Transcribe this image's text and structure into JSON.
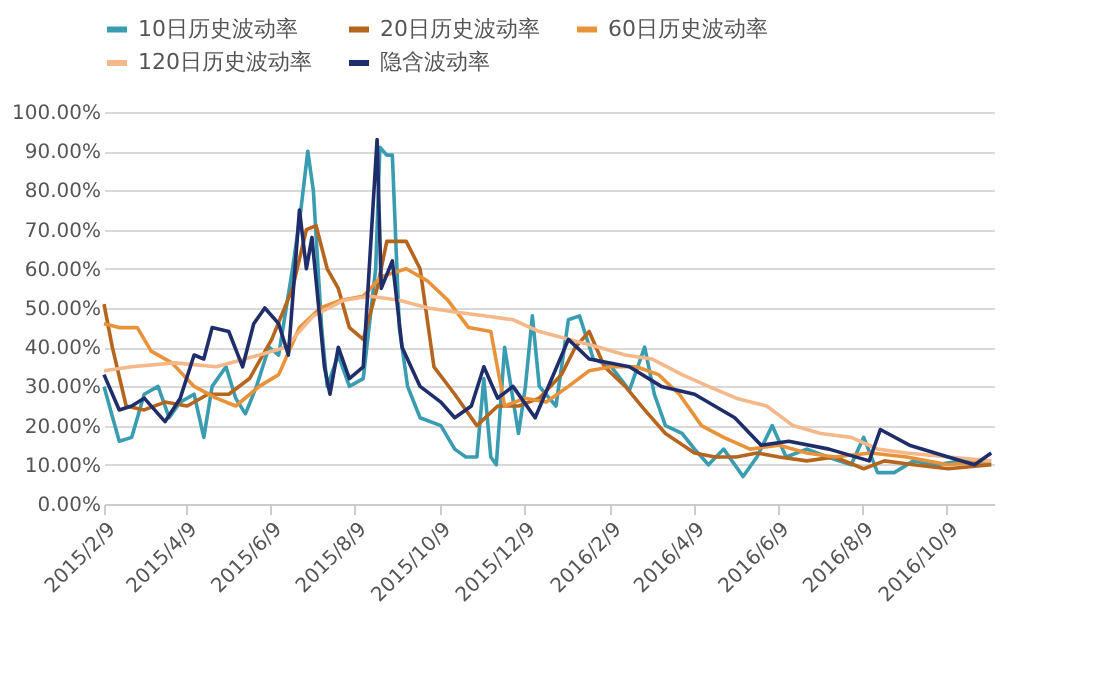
{
  "chart_data": {
    "type": "line",
    "legend": "top",
    "grid": "y",
    "line_style": "solid",
    "marker": "none",
    "xlim": [
      "2015-02-09",
      "2016-11-12"
    ],
    "xticks": [
      {
        "value": "2015-02-09",
        "label": "2015/2/9"
      },
      {
        "value": "2015-04-09",
        "label": "2015/4/9"
      },
      {
        "value": "2015-06-09",
        "label": "2015/6/9"
      },
      {
        "value": "2015-08-09",
        "label": "2015/8/9"
      },
      {
        "value": "2015-10-09",
        "label": "2015/10/9"
      },
      {
        "value": "2015-12-09",
        "label": "2015/12/9"
      },
      {
        "value": "2016-02-09",
        "label": "2016/2/9"
      },
      {
        "value": "2016-04-09",
        "label": "2016/4/9"
      },
      {
        "value": "2016-06-09",
        "label": "2016/6/9"
      },
      {
        "value": "2016-08-09",
        "label": "2016/8/9"
      },
      {
        "value": "2016-10-09",
        "label": "2016/10/9"
      }
    ],
    "ylim": [
      0,
      100
    ],
    "yticks": [
      {
        "value": 0,
        "label": "0.00%"
      },
      {
        "value": 10,
        "label": "10.00%"
      },
      {
        "value": 20,
        "label": "20.00%"
      },
      {
        "value": 30,
        "label": "30.00%"
      },
      {
        "value": 40,
        "label": "40.00%"
      },
      {
        "value": 50,
        "label": "50.00%"
      },
      {
        "value": 60,
        "label": "60.00%"
      },
      {
        "value": 70,
        "label": "70.00%"
      },
      {
        "value": 80,
        "label": "80.00%"
      },
      {
        "value": 90,
        "label": "90.00%"
      },
      {
        "value": 100,
        "label": "100.00%"
      }
    ],
    "series": [
      {
        "name": "10日历史波动率",
        "color": "#3a9cb0",
        "x": [
          "2015-02-09",
          "2015-02-20",
          "2015-03-01",
          "2015-03-10",
          "2015-03-20",
          "2015-03-28",
          "2015-04-05",
          "2015-04-15",
          "2015-04-22",
          "2015-04-28",
          "2015-05-08",
          "2015-05-15",
          "2015-05-22",
          "2015-05-30",
          "2015-06-08",
          "2015-06-15",
          "2015-06-25",
          "2015-07-01",
          "2015-07-06",
          "2015-07-10",
          "2015-07-16",
          "2015-07-20",
          "2015-07-28",
          "2015-08-05",
          "2015-08-15",
          "2015-08-24",
          "2015-08-27",
          "2015-09-01",
          "2015-09-05",
          "2015-09-10",
          "2015-09-16",
          "2015-09-25",
          "2015-10-10",
          "2015-10-20",
          "2015-10-28",
          "2015-11-05",
          "2015-11-10",
          "2015-11-15",
          "2015-11-19",
          "2015-11-25",
          "2015-12-05",
          "2015-12-10",
          "2015-12-15",
          "2015-12-20",
          "2016-01-01",
          "2016-01-10",
          "2016-01-18",
          "2016-01-28",
          "2016-02-10",
          "2016-02-23",
          "2016-03-05",
          "2016-03-12",
          "2016-03-20",
          "2016-04-01",
          "2016-04-10",
          "2016-04-20",
          "2016-05-01",
          "2016-05-15",
          "2016-05-25",
          "2016-06-05",
          "2016-06-15",
          "2016-06-30",
          "2016-07-15",
          "2016-08-01",
          "2016-08-10",
          "2016-08-20",
          "2016-09-01",
          "2016-09-15",
          "2016-10-01",
          "2016-10-20",
          "2016-11-10"
        ],
        "values": [
          30,
          16,
          17,
          28,
          30,
          22,
          26,
          28,
          17,
          30,
          35,
          27,
          23,
          30,
          40,
          38,
          60,
          75,
          90,
          80,
          45,
          30,
          38,
          30,
          32,
          60,
          91,
          89,
          89,
          45,
          30,
          22,
          20,
          14,
          12,
          12,
          32,
          12,
          10,
          40,
          18,
          30,
          48,
          30,
          25,
          47,
          48,
          37,
          35,
          29,
          40,
          28,
          20,
          18,
          14,
          10,
          14,
          7,
          12,
          20,
          12,
          14,
          12,
          10,
          17,
          8,
          8,
          11,
          10,
          11,
          10
        ]
      },
      {
        "name": "20日历史波动率",
        "color": "#b5651d",
        "x": [
          "2015-02-09",
          "2015-02-15",
          "2015-02-25",
          "2015-03-10",
          "2015-03-25",
          "2015-04-10",
          "2015-04-25",
          "2015-05-10",
          "2015-05-25",
          "2015-06-10",
          "2015-06-25",
          "2015-07-05",
          "2015-07-12",
          "2015-07-20",
          "2015-07-28",
          "2015-08-05",
          "2015-08-15",
          "2015-08-25",
          "2015-09-01",
          "2015-09-15",
          "2015-09-25",
          "2015-10-05",
          "2015-10-20",
          "2015-11-05",
          "2015-11-20",
          "2015-12-05",
          "2015-12-20",
          "2016-01-05",
          "2016-01-15",
          "2016-01-25",
          "2016-02-05",
          "2016-02-20",
          "2016-03-05",
          "2016-03-20",
          "2016-04-10",
          "2016-04-25",
          "2016-05-10",
          "2016-05-25",
          "2016-06-10",
          "2016-06-30",
          "2016-07-20",
          "2016-08-10",
          "2016-08-25",
          "2016-09-15",
          "2016-10-10",
          "2016-11-10"
        ],
        "values": [
          51,
          40,
          25,
          24,
          26,
          25,
          28,
          28,
          32,
          42,
          55,
          70,
          71,
          60,
          55,
          45,
          42,
          55,
          67,
          67,
          60,
          35,
          28,
          20,
          25,
          25,
          27,
          33,
          40,
          44,
          35,
          30,
          24,
          18,
          13,
          12,
          12,
          13,
          12,
          11,
          12,
          9,
          11,
          10,
          9,
          10
        ]
      },
      {
        "name": "60日历史波动率",
        "color": "#e8923a",
        "x": [
          "2015-02-09",
          "2015-02-20",
          "2015-03-05",
          "2015-03-15",
          "2015-03-30",
          "2015-04-15",
          "2015-05-01",
          "2015-05-15",
          "2015-06-01",
          "2015-06-15",
          "2015-06-30",
          "2015-07-15",
          "2015-07-30",
          "2015-08-15",
          "2015-08-28",
          "2015-09-15",
          "2015-09-30",
          "2015-10-15",
          "2015-10-30",
          "2015-11-15",
          "2015-11-25",
          "2015-12-10",
          "2015-12-25",
          "2016-01-10",
          "2016-01-25",
          "2016-02-10",
          "2016-02-28",
          "2016-03-15",
          "2016-03-30",
          "2016-04-15",
          "2016-05-01",
          "2016-05-20",
          "2016-06-10",
          "2016-06-30",
          "2016-07-20",
          "2016-08-15",
          "2016-09-10",
          "2016-10-10",
          "2016-11-10"
        ],
        "values": [
          46,
          45,
          45,
          39,
          36,
          30,
          27,
          25,
          30,
          33,
          45,
          50,
          52,
          53,
          58,
          60,
          57,
          52,
          45,
          44,
          25,
          27,
          26,
          30,
          34,
          35,
          35,
          33,
          28,
          20,
          17,
          14,
          15,
          13,
          12,
          13,
          12,
          10,
          11
        ]
      },
      {
        "name": "120日历史波动率",
        "color": "#f4b98a",
        "x": [
          "2015-02-09",
          "2015-03-01",
          "2015-04-01",
          "2015-05-01",
          "2015-06-01",
          "2015-06-20",
          "2015-07-10",
          "2015-08-01",
          "2015-08-20",
          "2015-09-10",
          "2015-10-01",
          "2015-10-20",
          "2015-11-10",
          "2015-12-01",
          "2015-12-20",
          "2016-01-10",
          "2016-02-01",
          "2016-02-20",
          "2016-03-10",
          "2016-04-01",
          "2016-04-20",
          "2016-05-10",
          "2016-06-01",
          "2016-06-20",
          "2016-07-10",
          "2016-08-01",
          "2016-08-20",
          "2016-09-10",
          "2016-10-10",
          "2016-11-10"
        ],
        "values": [
          34,
          35,
          36,
          35,
          38,
          40,
          48,
          52,
          53,
          52,
          50,
          49,
          48,
          47,
          44,
          42,
          40,
          38,
          37,
          33,
          30,
          27,
          25,
          20,
          18,
          17,
          14,
          13,
          12,
          11
        ]
      },
      {
        "name": "隐含波动率",
        "color": "#1f2d6b",
        "x": [
          "2015-02-09",
          "2015-02-20",
          "2015-03-01",
          "2015-03-10",
          "2015-03-25",
          "2015-04-05",
          "2015-04-15",
          "2015-04-22",
          "2015-04-28",
          "2015-05-10",
          "2015-05-20",
          "2015-05-28",
          "2015-06-05",
          "2015-06-15",
          "2015-06-22",
          "2015-06-30",
          "2015-07-05",
          "2015-07-09",
          "2015-07-18",
          "2015-07-22",
          "2015-07-28",
          "2015-08-05",
          "2015-08-15",
          "2015-08-25",
          "2015-08-28",
          "2015-09-05",
          "2015-09-12",
          "2015-09-25",
          "2015-10-10",
          "2015-10-20",
          "2015-11-01",
          "2015-11-10",
          "2015-11-20",
          "2015-12-01",
          "2015-12-17",
          "2016-01-10",
          "2016-01-25",
          "2016-02-23",
          "2016-03-17",
          "2016-04-10",
          "2016-05-09",
          "2016-05-28",
          "2016-06-17",
          "2016-07-16",
          "2016-08-14",
          "2016-08-22",
          "2016-09-12",
          "2016-10-10",
          "2016-10-29",
          "2016-11-10"
        ],
        "values": [
          33,
          24,
          25,
          27,
          21,
          27,
          38,
          37,
          45,
          44,
          35,
          46,
          50,
          46,
          38,
          75,
          60,
          68,
          35,
          28,
          40,
          32,
          35,
          93,
          55,
          62,
          40,
          30,
          26,
          22,
          25,
          35,
          27,
          30,
          22,
          42,
          37,
          35,
          30,
          28,
          22,
          15,
          16,
          14,
          11,
          19,
          15,
          12,
          10,
          13
        ]
      }
    ]
  }
}
